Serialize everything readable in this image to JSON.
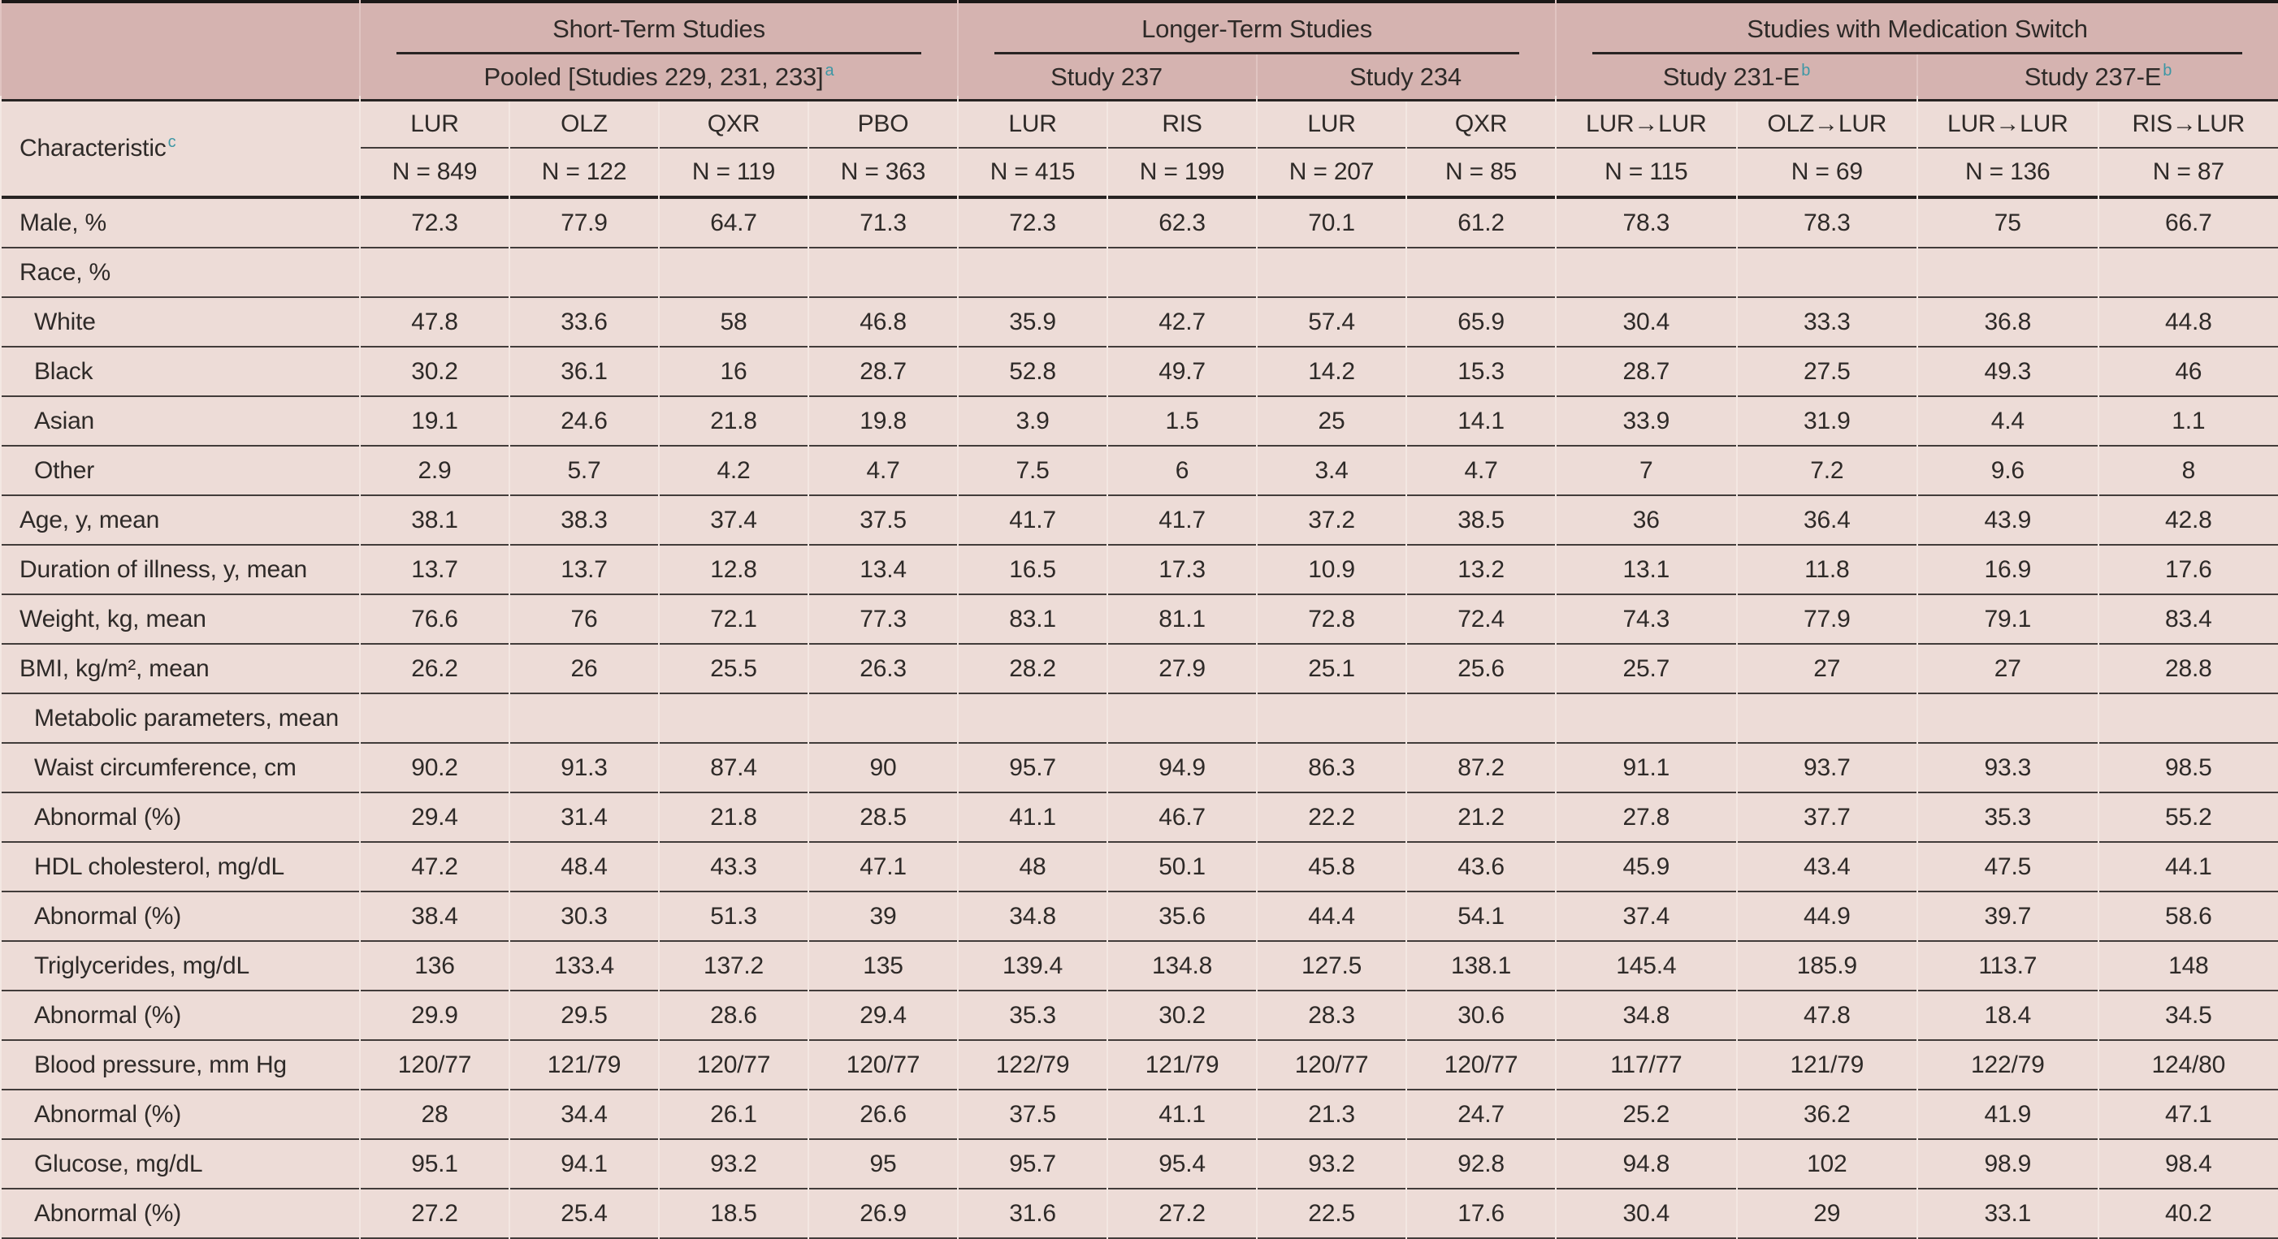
{
  "theme": {
    "header_band": "#d5b3b0",
    "body_band": "#eddcd7",
    "gap_dark": "#e0c4c1",
    "gap_light": "#f3e7e2",
    "rule": "#423c3a",
    "rule_heavy": "#282423",
    "text": "#2e2a28",
    "sup": "#3d97a5"
  },
  "table": {
    "groups": [
      {
        "title": "Short-Term Studies",
        "studies": [
          {
            "name": "Pooled [Studies 229, 231, 233]",
            "sup": "a",
            "span": 4
          }
        ]
      },
      {
        "title": "Longer-Term Studies",
        "studies": [
          {
            "name": "Study 237",
            "span": 2
          },
          {
            "name": "Study 234",
            "span": 2
          }
        ]
      },
      {
        "title": "Studies with Medication Switch",
        "studies": [
          {
            "name": "Study 231-E",
            "sup": "b",
            "span": 2
          },
          {
            "name": "Study 237-E",
            "sup": "b",
            "span": 2
          }
        ]
      }
    ],
    "characteristic_header": {
      "label": "Characteristic",
      "sup": "c"
    },
    "columns": [
      {
        "arm": "LUR",
        "n": "N = 849"
      },
      {
        "arm": "OLZ",
        "n": "N = 122"
      },
      {
        "arm": "QXR",
        "n": "N = 119"
      },
      {
        "arm": "PBO",
        "n": "N = 363"
      },
      {
        "arm": "LUR",
        "n": "N = 415"
      },
      {
        "arm": "RIS",
        "n": "N = 199"
      },
      {
        "arm": "LUR",
        "n": "N = 207"
      },
      {
        "arm": "QXR",
        "n": "N = 85"
      },
      {
        "arm": "LUR→LUR",
        "n": "N = 115"
      },
      {
        "arm": "OLZ→LUR",
        "n": "N = 69"
      },
      {
        "arm": "LUR→LUR",
        "n": "N = 136"
      },
      {
        "arm": "RIS→LUR",
        "n": "N = 87"
      }
    ],
    "rows": [
      {
        "label": "Male, %",
        "indent": 0,
        "values": [
          "72.3",
          "77.9",
          "64.7",
          "71.3",
          "72.3",
          "62.3",
          "70.1",
          "61.2",
          "78.3",
          "78.3",
          "75",
          "66.7"
        ]
      },
      {
        "label": "Race, %",
        "indent": 0,
        "values": []
      },
      {
        "label": "White",
        "indent": 1,
        "values": [
          "47.8",
          "33.6",
          "58",
          "46.8",
          "35.9",
          "42.7",
          "57.4",
          "65.9",
          "30.4",
          "33.3",
          "36.8",
          "44.8"
        ]
      },
      {
        "label": "Black",
        "indent": 1,
        "values": [
          "30.2",
          "36.1",
          "16",
          "28.7",
          "52.8",
          "49.7",
          "14.2",
          "15.3",
          "28.7",
          "27.5",
          "49.3",
          "46"
        ]
      },
      {
        "label": "Asian",
        "indent": 1,
        "values": [
          "19.1",
          "24.6",
          "21.8",
          "19.8",
          "3.9",
          "1.5",
          "25",
          "14.1",
          "33.9",
          "31.9",
          "4.4",
          "1.1"
        ]
      },
      {
        "label": "Other",
        "indent": 1,
        "values": [
          "2.9",
          "5.7",
          "4.2",
          "4.7",
          "7.5",
          "6",
          "3.4",
          "4.7",
          "7",
          "7.2",
          "9.6",
          "8"
        ]
      },
      {
        "label": "Age, y, mean",
        "indent": 0,
        "values": [
          "38.1",
          "38.3",
          "37.4",
          "37.5",
          "41.7",
          "41.7",
          "37.2",
          "38.5",
          "36",
          "36.4",
          "43.9",
          "42.8"
        ]
      },
      {
        "label": "Duration of illness, y, mean",
        "indent": 0,
        "values": [
          "13.7",
          "13.7",
          "12.8",
          "13.4",
          "16.5",
          "17.3",
          "10.9",
          "13.2",
          "13.1",
          "11.8",
          "16.9",
          "17.6"
        ]
      },
      {
        "label": "Weight, kg, mean",
        "indent": 0,
        "values": [
          "76.6",
          "76",
          "72.1",
          "77.3",
          "83.1",
          "81.1",
          "72.8",
          "72.4",
          "74.3",
          "77.9",
          "79.1",
          "83.4"
        ]
      },
      {
        "label": "BMI, kg/m², mean",
        "indent": 0,
        "values": [
          "26.2",
          "26",
          "25.5",
          "26.3",
          "28.2",
          "27.9",
          "25.1",
          "25.6",
          "25.7",
          "27",
          "27",
          "28.8"
        ]
      },
      {
        "label": "Metabolic parameters, mean",
        "indent": 1,
        "values": []
      },
      {
        "label": "Waist circumference, cm",
        "indent": 1,
        "values": [
          "90.2",
          "91.3",
          "87.4",
          "90",
          "95.7",
          "94.9",
          "86.3",
          "87.2",
          "91.1",
          "93.7",
          "93.3",
          "98.5"
        ]
      },
      {
        "label": "Abnormal (%)",
        "indent": 1,
        "values": [
          "29.4",
          "31.4",
          "21.8",
          "28.5",
          "41.1",
          "46.7",
          "22.2",
          "21.2",
          "27.8",
          "37.7",
          "35.3",
          "55.2"
        ]
      },
      {
        "label": "HDL cholesterol, mg/dL",
        "indent": 1,
        "values": [
          "47.2",
          "48.4",
          "43.3",
          "47.1",
          "48",
          "50.1",
          "45.8",
          "43.6",
          "45.9",
          "43.4",
          "47.5",
          "44.1"
        ]
      },
      {
        "label": "Abnormal (%)",
        "indent": 1,
        "values": [
          "38.4",
          "30.3",
          "51.3",
          "39",
          "34.8",
          "35.6",
          "44.4",
          "54.1",
          "37.4",
          "44.9",
          "39.7",
          "58.6"
        ]
      },
      {
        "label": "Triglycerides, mg/dL",
        "indent": 1,
        "values": [
          "136",
          "133.4",
          "137.2",
          "135",
          "139.4",
          "134.8",
          "127.5",
          "138.1",
          "145.4",
          "185.9",
          "113.7",
          "148"
        ]
      },
      {
        "label": "Abnormal (%)",
        "indent": 1,
        "values": [
          "29.9",
          "29.5",
          "28.6",
          "29.4",
          "35.3",
          "30.2",
          "28.3",
          "30.6",
          "34.8",
          "47.8",
          "18.4",
          "34.5"
        ]
      },
      {
        "label": "Blood pressure, mm Hg",
        "indent": 1,
        "values": [
          "120/77",
          "121/79",
          "120/77",
          "120/77",
          "122/79",
          "121/79",
          "120/77",
          "120/77",
          "117/77",
          "121/79",
          "122/79",
          "124/80"
        ]
      },
      {
        "label": "Abnormal (%)",
        "indent": 1,
        "values": [
          "28",
          "34.4",
          "26.1",
          "26.6",
          "37.5",
          "41.1",
          "21.3",
          "24.7",
          "25.2",
          "36.2",
          "41.9",
          "47.1"
        ]
      },
      {
        "label": "Glucose, mg/dL",
        "indent": 1,
        "values": [
          "95.1",
          "94.1",
          "93.2",
          "95",
          "95.7",
          "95.4",
          "93.2",
          "92.8",
          "94.8",
          "102",
          "98.9",
          "98.4"
        ]
      },
      {
        "label": "Abnormal (%)",
        "indent": 1,
        "values": [
          "27.2",
          "25.4",
          "18.5",
          "26.9",
          "31.6",
          "27.2",
          "22.5",
          "17.6",
          "30.4",
          "29",
          "33.1",
          "40.2"
        ]
      }
    ]
  }
}
